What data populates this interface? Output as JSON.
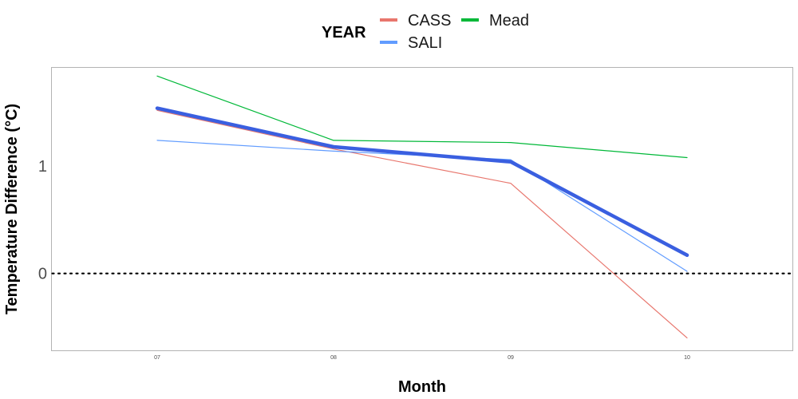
{
  "chart_data": {
    "type": "line",
    "xlabel": "Month",
    "ylabel": "Temperature Difference (°C)",
    "categories": [
      "07",
      "08",
      "09",
      "10"
    ],
    "y_ticks": [
      "0",
      "1"
    ],
    "ylim": [
      -0.72,
      1.92
    ],
    "legend": {
      "title": "YEAR",
      "placement": "top"
    },
    "reference_line": {
      "y": 0,
      "style": "dotted",
      "color": "#000000"
    },
    "series": [
      {
        "name": "CASS",
        "values": [
          1.52,
          1.16,
          0.84,
          -0.6
        ],
        "color": "#E8766D",
        "in_legend": true
      },
      {
        "name": "Mead",
        "values": [
          1.84,
          1.24,
          1.22,
          1.08
        ],
        "color": "#00B838",
        "in_legend": true
      },
      {
        "name": "SALI",
        "values": [
          1.24,
          1.14,
          1.06,
          0.02
        ],
        "color": "#619CFF",
        "in_legend": true
      },
      {
        "name": "",
        "values": [
          1.54,
          1.18,
          1.04,
          0.17
        ],
        "color": "#3A5FE0",
        "in_legend": false,
        "bold": true
      }
    ],
    "grid": false
  }
}
